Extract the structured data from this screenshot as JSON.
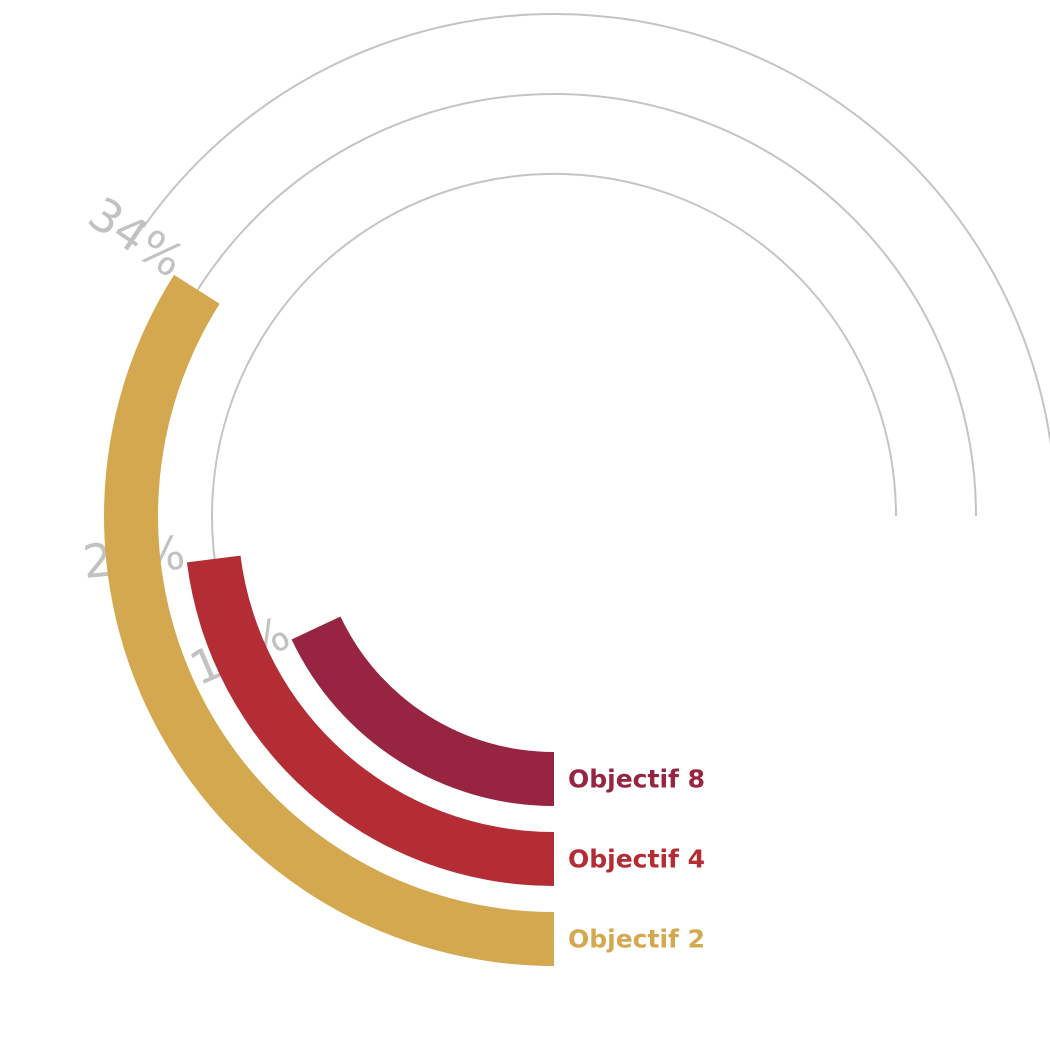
{
  "chart_data": {
    "type": "radial-bar",
    "max_value": 100,
    "series": [
      {
        "name": "Objectif 8",
        "value": 18,
        "label": "18%",
        "color": "#972542"
      },
      {
        "name": "Objectif 4",
        "value": 23,
        "label": "23%",
        "color": "#b52d34"
      },
      {
        "name": "Objectif 2",
        "value": 34,
        "label": "34%",
        "color": "#d4a84f"
      }
    ]
  }
}
